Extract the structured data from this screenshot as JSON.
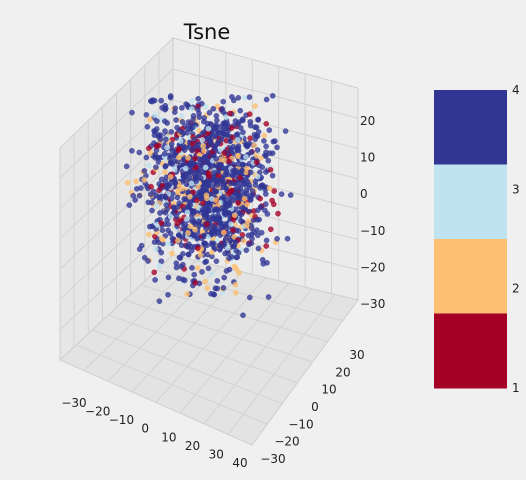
{
  "chart_data": {
    "type": "scatter",
    "title": "Tsne",
    "projection": "3d",
    "xlabel": "",
    "ylabel": "",
    "zlabel": "",
    "x_ticks": [
      "−30",
      "−20",
      "−10",
      "0",
      "10",
      "20",
      "30",
      "40"
    ],
    "y_ticks": [
      "−30",
      "−20",
      "−10",
      "0",
      "10",
      "20",
      "30"
    ],
    "z_ticks": [
      "−30",
      "−20",
      "−10",
      "0",
      "10",
      "20"
    ],
    "xlim": [
      -35,
      42
    ],
    "ylim": [
      -35,
      38
    ],
    "zlim": [
      -38,
      27
    ],
    "grid": true,
    "colormap": "RdYlBu",
    "colorbar": {
      "placement": "right",
      "tick_labels": [
        "1",
        "2",
        "3",
        "4"
      ],
      "segments": [
        {
          "value": 4,
          "color": "#313695"
        },
        {
          "value": 3,
          "color": "#bfe3ef"
        },
        {
          "value": 2,
          "color": "#fdbf71"
        },
        {
          "value": 1,
          "color": "#a50026"
        }
      ]
    },
    "class_colors": {
      "1": "#a50026",
      "2": "#fdbf71",
      "3": "#bfe3ef",
      "4": "#313695"
    },
    "series": [
      {
        "class": 4,
        "approx_count": 1300,
        "x_range": [
          -30,
          35
        ],
        "y_range": [
          -30,
          30
        ],
        "z_range": [
          -35,
          25
        ]
      },
      {
        "class": 2,
        "approx_count": 220,
        "x_range": [
          -30,
          35
        ],
        "y_range": [
          -30,
          30
        ],
        "z_range": [
          -35,
          25
        ]
      },
      {
        "class": 1,
        "approx_count": 180,
        "x_range": [
          -30,
          35
        ],
        "y_range": [
          -30,
          30
        ],
        "z_range": [
          -35,
          25
        ]
      },
      {
        "class": 3,
        "approx_count": 150,
        "x_range": [
          -30,
          35
        ],
        "y_range": [
          -30,
          30
        ],
        "z_range": [
          -35,
          25
        ]
      }
    ]
  }
}
